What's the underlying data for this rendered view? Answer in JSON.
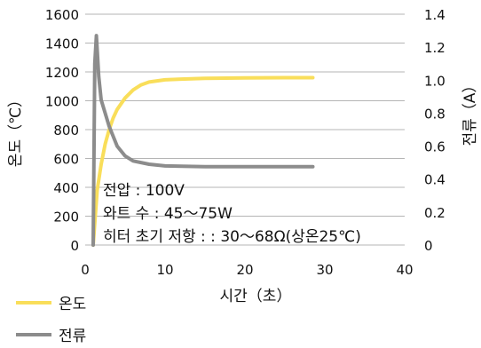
{
  "chart_data": {
    "type": "line",
    "ylabel_left": "온도（℃）",
    "ylabel_right": "전류（A）",
    "xlabel": "시간（초）",
    "xlim": [
      0,
      40
    ],
    "ylim_left": [
      0,
      1600
    ],
    "ylim_right": [
      0,
      1.4
    ],
    "x_ticks": [
      "0",
      "10",
      "20",
      "30",
      "40"
    ],
    "y_ticks_left": [
      "0",
      "200",
      "400",
      "600",
      "800",
      "1000",
      "1200",
      "1400",
      "1600"
    ],
    "y_ticks_right": [
      "0",
      "0.2",
      "0.4",
      "0.6",
      "0.8",
      "1.0",
      "1.2",
      "1.4"
    ],
    "grid": "horizontal",
    "legend_position": "bottom-left",
    "annotations": [
      "전압 : 100V",
      "와트 수 :  45～75W",
      "히터 초기 저항 : : 30～68Ω(상온25℃)"
    ],
    "series": [
      {
        "name": "온도",
        "color": "#f9de5a",
        "axis": "left",
        "x": [
          1.0,
          1.5,
          2.0,
          2.5,
          3.0,
          3.5,
          4.0,
          5.0,
          6.0,
          7.0,
          8.0,
          10.0,
          12.0,
          15.0,
          20.0,
          25.0,
          28.5
        ],
        "y": [
          0,
          380,
          560,
          700,
          800,
          880,
          940,
          1020,
          1075,
          1110,
          1130,
          1145,
          1150,
          1155,
          1158,
          1160,
          1160
        ]
      },
      {
        "name": "전류",
        "color": "#8c8c8c",
        "axis": "right",
        "x": [
          1.0,
          1.2,
          1.4,
          1.7,
          2.0,
          2.5,
          3.0,
          4.0,
          5.0,
          6.0,
          8.0,
          10.0,
          15.0,
          20.0,
          28.5
        ],
        "y": [
          0.0,
          1.1,
          1.27,
          1.02,
          0.88,
          0.8,
          0.72,
          0.6,
          0.54,
          0.51,
          0.49,
          0.48,
          0.475,
          0.475,
          0.475
        ]
      }
    ]
  }
}
